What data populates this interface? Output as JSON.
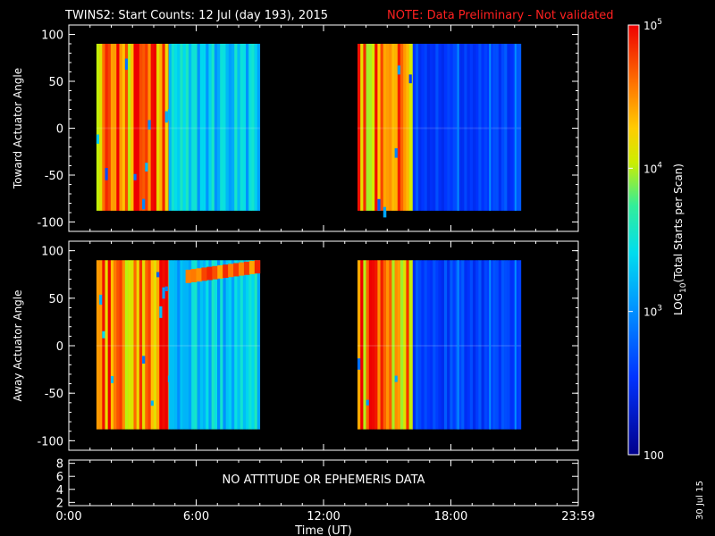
{
  "header": {
    "title": "TWINS2: Start Counts: 12 Jul (day 193), 2015",
    "note": "NOTE: Data Preliminary - Not validated",
    "note_color": "#ff2020"
  },
  "footer": {
    "date_stamp": "30 Jul 15"
  },
  "chart_data": [
    {
      "type": "heatmap",
      "title": "",
      "ylabel": "Toward Actuator Angle",
      "ylim": [
        -110,
        110
      ],
      "yticks": [
        "-100",
        "-50",
        "0",
        "50",
        "100"
      ],
      "xlabel": "",
      "x_range_hours": [
        0,
        24
      ],
      "data_intervals_hours": [
        [
          1.3,
          9.0
        ],
        [
          13.6,
          21.3
        ]
      ],
      "y_extent": [
        -88,
        90
      ],
      "colorscale_log10_range": [
        2,
        5
      ],
      "column_profile": [
        {
          "t": [
            1.3,
            4.7
          ],
          "log10": 4.55,
          "noise": "high"
        },
        {
          "t": [
            4.7,
            9.0
          ],
          "log10": 3.3,
          "noise": "medium"
        },
        {
          "t": [
            13.6,
            16.2
          ],
          "log10": 4.5,
          "noise": "high"
        },
        {
          "t": [
            16.2,
            21.3
          ],
          "log10": 2.6,
          "noise": "low"
        }
      ]
    },
    {
      "type": "heatmap",
      "title": "",
      "ylabel": "Away Actuator Angle",
      "ylim": [
        -110,
        110
      ],
      "yticks": [
        "-100",
        "-50",
        "0",
        "50",
        "100"
      ],
      "xlabel": "",
      "x_range_hours": [
        0,
        24
      ],
      "data_intervals_hours": [
        [
          1.3,
          9.0
        ],
        [
          13.6,
          21.3
        ]
      ],
      "y_extent": [
        -88,
        90
      ],
      "colorscale_log10_range": [
        2,
        5
      ],
      "column_profile": [
        {
          "t": [
            1.3,
            4.7
          ],
          "log10": 4.55,
          "noise": "high"
        },
        {
          "t": [
            4.7,
            9.0
          ],
          "log10": 3.3,
          "noise": "medium"
        },
        {
          "t": [
            13.6,
            16.2
          ],
          "log10": 4.5,
          "noise": "high"
        },
        {
          "t": [
            16.2,
            21.3
          ],
          "log10": 2.6,
          "noise": "low"
        }
      ],
      "feature": {
        "label": "",
        "t": [
          5.5,
          9.0
        ],
        "angle": [
          70,
          88
        ],
        "log10": 4.6
      }
    },
    {
      "type": "line",
      "title": "",
      "ylim": [
        1.5,
        8.5
      ],
      "yticks": [
        "2",
        "4",
        "6",
        "8"
      ],
      "message": "NO ATTITUDE OR EPHEMERIS DATA",
      "xlabel": "Time (UT)",
      "xticks": [
        {
          "hour": 0,
          "label": "0:00"
        },
        {
          "hour": 6,
          "label": "6:00"
        },
        {
          "hour": 12,
          "label": "12:00"
        },
        {
          "hour": 18,
          "label": "18:00"
        },
        {
          "hour": 24,
          "label": "23:59"
        }
      ]
    }
  ],
  "colorbar": {
    "label": "LOG10(Total Starts per Scan)",
    "ticks": [
      {
        "value": 100,
        "label": "100"
      },
      {
        "value": 1000,
        "label": "10^3"
      },
      {
        "value": 10000,
        "label": "10^4"
      },
      {
        "value": 100000,
        "label": "10^5"
      }
    ],
    "range": [
      100,
      100000
    ]
  }
}
